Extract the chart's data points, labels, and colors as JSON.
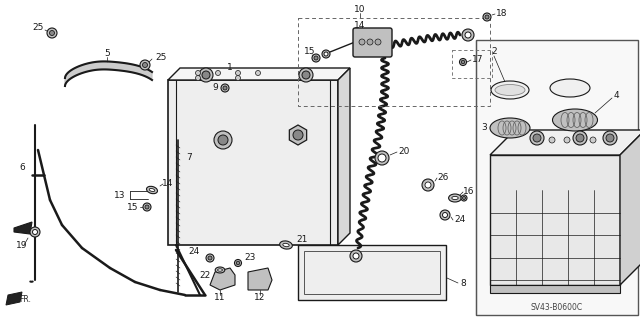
{
  "background_color": "#ffffff",
  "diagram_code": "SV43-B0600C",
  "lc": "#1a1a1a",
  "gray_light": "#e0e0e0",
  "gray_mid": "#c0c0c0",
  "gray_dark": "#888888",
  "fs": 6.5,
  "fs_small": 5.5
}
